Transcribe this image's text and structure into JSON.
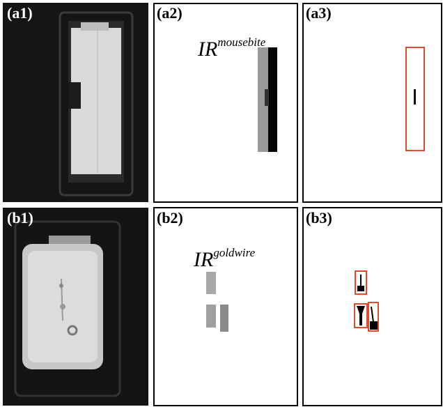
{
  "panels": [
    {
      "label": "(a1)"
    },
    {
      "label": "(a2)",
      "annotation": {
        "base": "IR",
        "superscript": "mousebite"
      }
    },
    {
      "label": "(a3)"
    },
    {
      "label": "(b1)"
    },
    {
      "label": "(b2)",
      "annotation": {
        "base": "IR",
        "superscript": "goldwire"
      }
    },
    {
      "label": "(b3)"
    }
  ]
}
